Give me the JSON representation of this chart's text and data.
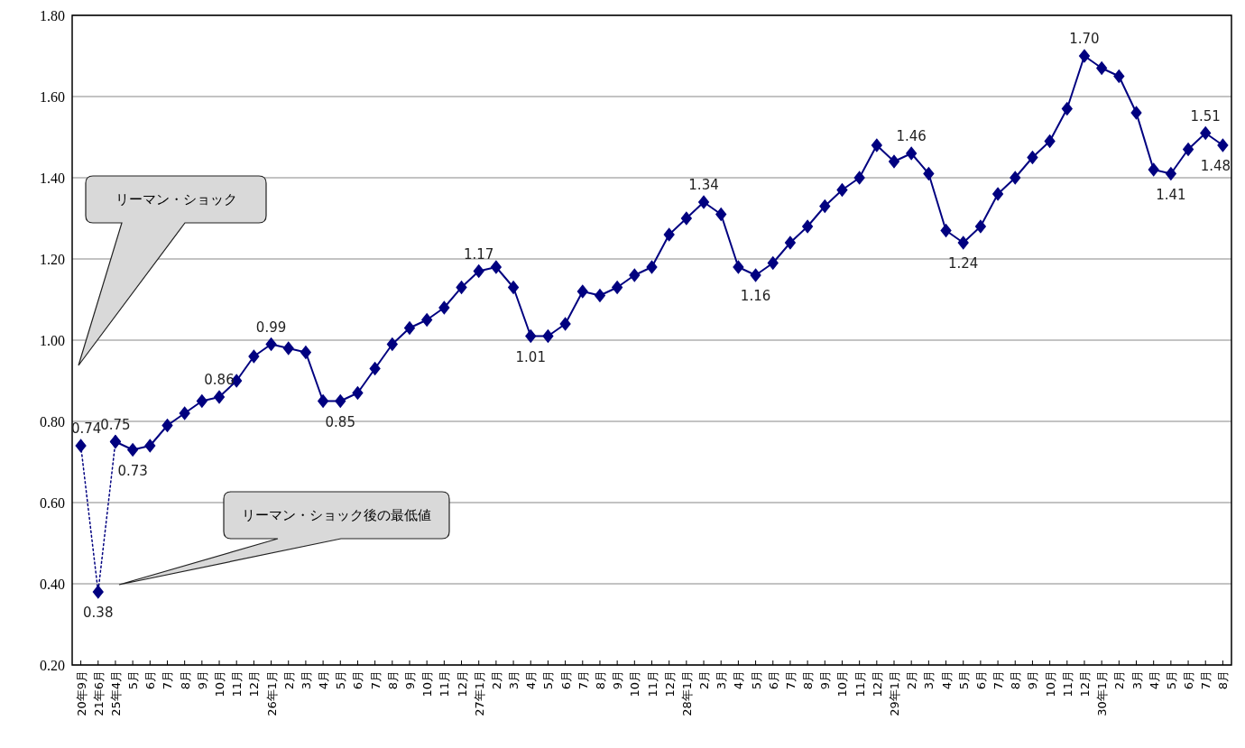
{
  "chart_data": {
    "type": "line",
    "categories": [
      "20年9月",
      "21年6月",
      "25年4月",
      "5月",
      "6月",
      "7月",
      "8月",
      "9月",
      "10月",
      "11月",
      "12月",
      "26年1月",
      "2月",
      "3月",
      "4月",
      "5月",
      "6月",
      "7月",
      "8月",
      "9月",
      "10月",
      "11月",
      "12月",
      "27年1月",
      "2月",
      "3月",
      "4月",
      "5月",
      "6月",
      "7月",
      "8月",
      "9月",
      "10月",
      "11月",
      "12月",
      "28年1月",
      "2月",
      "3月",
      "4月",
      "5月",
      "6月",
      "7月",
      "8月",
      "9月",
      "10月",
      "11月",
      "12月",
      "29年1月",
      "2月",
      "3月",
      "4月",
      "5月",
      "6月",
      "7月",
      "8月",
      "9月",
      "10月",
      "11月",
      "12月",
      "30年1月",
      "2月",
      "3月",
      "4月",
      "5月",
      "6月",
      "7月",
      "8月"
    ],
    "series": [
      {
        "color": "#000080",
        "line_style": "dotted",
        "values": [
          0.74,
          0.38,
          0.75,
          null,
          null,
          null,
          null,
          null,
          null,
          null,
          null,
          null,
          null,
          null,
          null,
          null,
          null,
          null,
          null,
          null,
          null,
          null,
          null,
          null,
          null,
          null,
          null,
          null,
          null,
          null,
          null,
          null,
          null,
          null,
          null,
          null,
          null,
          null,
          null,
          null,
          null,
          null,
          null,
          null,
          null,
          null,
          null,
          null,
          null,
          null,
          null,
          null,
          null,
          null,
          null,
          null,
          null,
          null,
          null,
          null,
          null,
          null,
          null,
          null,
          null,
          null,
          null
        ],
        "value_labels": [
          "0.74",
          "0.38",
          "0.75",
          null,
          null,
          null,
          null,
          null,
          null,
          null,
          null,
          null,
          null,
          null,
          null,
          null,
          null,
          null,
          null,
          null,
          null,
          null,
          null,
          null,
          null,
          null,
          null,
          null,
          null,
          null,
          null,
          null,
          null,
          null,
          null,
          null,
          null,
          null,
          null,
          null,
          null,
          null,
          null,
          null,
          null,
          null,
          null,
          null,
          null,
          null,
          null,
          null,
          null,
          null,
          null,
          null,
          null,
          null,
          null,
          null,
          null,
          null,
          null,
          null,
          null,
          null,
          null
        ]
      },
      {
        "color": "#000080",
        "line_style": "solid",
        "values": [
          null,
          null,
          0.75,
          0.73,
          0.74,
          0.79,
          0.82,
          0.85,
          0.86,
          0.9,
          0.96,
          0.99,
          0.98,
          0.97,
          0.85,
          0.85,
          0.87,
          0.93,
          0.99,
          1.03,
          1.05,
          1.08,
          1.13,
          1.17,
          1.18,
          1.13,
          1.01,
          1.01,
          1.04,
          1.12,
          1.11,
          1.13,
          1.16,
          1.18,
          1.26,
          1.3,
          1.34,
          1.31,
          1.18,
          1.16,
          1.19,
          1.24,
          1.28,
          1.33,
          1.37,
          1.4,
          1.48,
          1.44,
          1.46,
          1.41,
          1.27,
          1.24,
          1.28,
          1.36,
          1.4,
          1.45,
          1.49,
          1.57,
          1.7,
          1.67,
          1.65,
          1.56,
          1.42,
          1.41,
          1.47,
          1.51,
          1.48
        ],
        "value_labels": [
          null,
          null,
          null,
          "0.73",
          null,
          null,
          null,
          null,
          "0.86",
          null,
          null,
          "0.99",
          null,
          null,
          null,
          "0.85",
          null,
          null,
          null,
          null,
          null,
          null,
          null,
          "1.17",
          null,
          null,
          "1.01",
          null,
          null,
          null,
          null,
          null,
          null,
          null,
          null,
          null,
          "1.34",
          null,
          null,
          "1.16",
          null,
          null,
          null,
          null,
          null,
          null,
          null,
          null,
          "1.46",
          null,
          null,
          "1.24",
          null,
          null,
          null,
          null,
          null,
          null,
          "1.70",
          null,
          null,
          null,
          null,
          "1.41",
          null,
          "1.51",
          "1.48"
        ]
      }
    ],
    "ylim": [
      0.2,
      1.8
    ],
    "yticks": [
      {
        "value": 0.2,
        "label": "0.20"
      },
      {
        "value": 0.4,
        "label": "0.40"
      },
      {
        "value": 0.6,
        "label": "0.60"
      },
      {
        "value": 0.8,
        "label": "0.80"
      },
      {
        "value": 1.0,
        "label": "1.00"
      },
      {
        "value": 1.2,
        "label": "1.20"
      },
      {
        "value": 1.4,
        "label": "1.40"
      },
      {
        "value": 1.6,
        "label": "1.60"
      },
      {
        "value": 1.8,
        "label": "1.80"
      }
    ],
    "grid": "y",
    "marker": "diamond",
    "annotations": [
      "リーマン・ショック",
      "リーマン・ショック後の最低値"
    ]
  }
}
